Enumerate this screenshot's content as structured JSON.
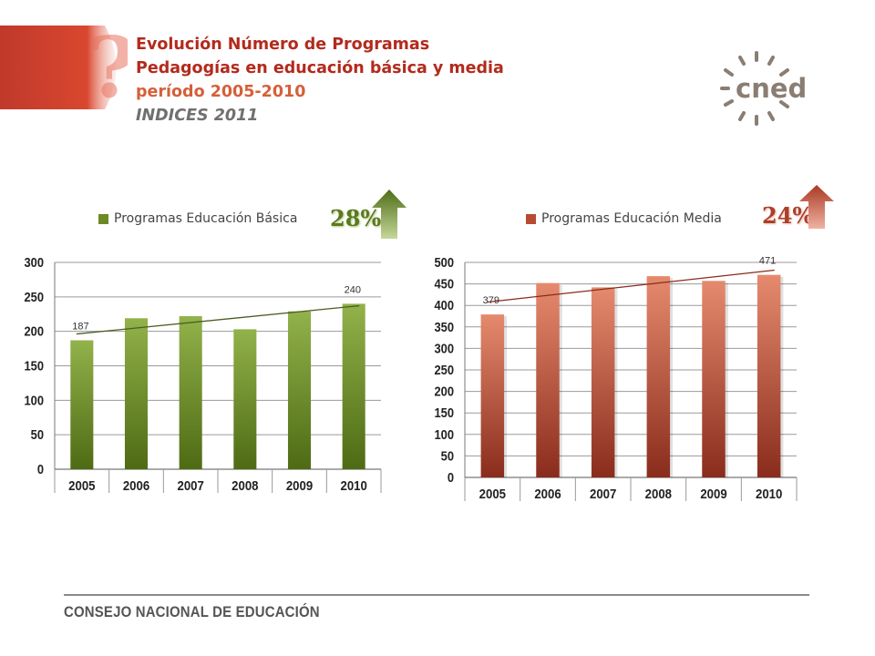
{
  "header": {
    "line1": "Evolución Número de Programas",
    "line2": "Pedagogías en educación básica y media",
    "line3": "período 2005-2010",
    "line4": "INDICES 2011"
  },
  "logo": {
    "text": "cned",
    "icon": "sunburst-logo-icon"
  },
  "footer": {
    "text": "CONSEJO NACIONAL DE EDUCACIÓN"
  },
  "colors": {
    "title_red": "#b32a1c",
    "green": "#6b8a26",
    "red": "#b94a32",
    "arrow_green": "#5a7a1e",
    "arrow_red": "#b8452e"
  },
  "chart_data": [
    {
      "type": "bar",
      "title": "",
      "categories": [
        "2005",
        "2006",
        "2007",
        "2008",
        "2009",
        "2010"
      ],
      "series": [
        {
          "name": "Programas Educación Básica",
          "values": [
            187,
            219,
            222,
            203,
            229,
            240
          ]
        }
      ],
      "data_labels": {
        "2005": "187",
        "2010": "240"
      },
      "trendline": "linear",
      "ylim": [
        0,
        300
      ],
      "yticks": [
        0,
        50,
        100,
        150,
        200,
        250,
        300
      ],
      "legend": "top",
      "growth_badge": "28%",
      "badge_arrow": "up"
    },
    {
      "type": "bar",
      "title": "",
      "categories": [
        "2005",
        "2006",
        "2007",
        "2008",
        "2009",
        "2010"
      ],
      "series": [
        {
          "name": "Programas Educación Media",
          "values": [
            379,
            452,
            442,
            468,
            457,
            471
          ]
        }
      ],
      "data_labels": {
        "2005": "379",
        "2010": "471"
      },
      "trendline": "linear",
      "ylim": [
        0,
        500
      ],
      "yticks": [
        0,
        50,
        100,
        150,
        200,
        250,
        300,
        350,
        400,
        450,
        500
      ],
      "legend": "top",
      "growth_badge": "24%",
      "badge_arrow": "up"
    }
  ]
}
